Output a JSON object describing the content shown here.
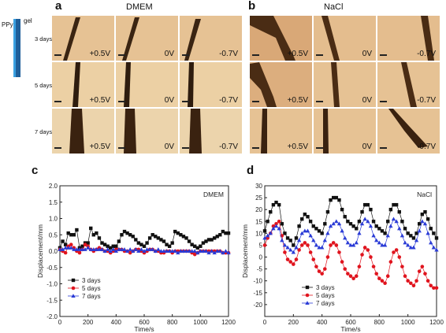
{
  "figure": {
    "legend_labels": {
      "ppy": "PPy",
      "gel": "gel"
    },
    "panel_a": {
      "letter": "a",
      "title": "DMEM"
    },
    "panel_b": {
      "letter": "b",
      "title": "NaCl"
    },
    "panel_c": {
      "letter": "c"
    },
    "panel_d": {
      "letter": "d"
    },
    "rows": [
      "3 days",
      "5 days",
      "7 days"
    ],
    "voltages": [
      "+0.5V",
      "0V",
      "-0.7V"
    ],
    "colors": {
      "series_3d": "#111111",
      "series_5d": "#e0141e",
      "series_7d": "#2a3bd6",
      "micro_bg": "#e4c08e",
      "electrode": "#3aa0e0"
    }
  },
  "chart_data": [
    {
      "type": "line",
      "panel": "c",
      "annotation": "DMEM",
      "xlabel": "Time/s",
      "ylabel": "Displacement/mm",
      "xlim": [
        0,
        1200
      ],
      "ylim": [
        -2.0,
        2.0
      ],
      "xticks": [
        0,
        200,
        400,
        600,
        800,
        1000,
        1200
      ],
      "yticks": [
        -2.0,
        -1.5,
        -1.0,
        -0.5,
        0.0,
        0.5,
        1.0,
        1.5,
        2.0
      ],
      "ytick_labels": [
        "-2.0",
        "-1.5",
        "-1.0",
        "-0.5",
        "0.0",
        "0.5",
        "1.0",
        "1.5",
        "2.0"
      ],
      "legend": "bottom-left",
      "series": [
        {
          "name": "3 days",
          "x": [
            0,
            20,
            40,
            60,
            80,
            100,
            120,
            140,
            160,
            180,
            200,
            220,
            240,
            260,
            280,
            300,
            320,
            340,
            360,
            380,
            400,
            420,
            440,
            460,
            480,
            500,
            520,
            540,
            560,
            580,
            600,
            620,
            640,
            660,
            680,
            700,
            720,
            740,
            760,
            780,
            800,
            820,
            840,
            860,
            880,
            900,
            920,
            940,
            960,
            980,
            1000,
            1020,
            1040,
            1060,
            1080,
            1100,
            1120,
            1140,
            1160,
            1180,
            1200
          ],
          "y": [
            0.1,
            0.3,
            0.2,
            0.55,
            0.5,
            0.5,
            0.65,
            0.1,
            0.15,
            0.25,
            0.25,
            0.7,
            0.5,
            0.55,
            0.4,
            0.25,
            0.2,
            0.15,
            0.1,
            0.15,
            0.15,
            0.3,
            0.5,
            0.6,
            0.55,
            0.5,
            0.45,
            0.35,
            0.25,
            0.2,
            0.15,
            0.25,
            0.4,
            0.5,
            0.45,
            0.4,
            0.35,
            0.3,
            0.2,
            0.15,
            0.25,
            0.6,
            0.55,
            0.5,
            0.45,
            0.4,
            0.3,
            0.2,
            0.15,
            0.1,
            0.15,
            0.25,
            0.3,
            0.35,
            0.35,
            0.4,
            0.45,
            0.5,
            0.6,
            0.55,
            0.55
          ]
        },
        {
          "name": "5 days",
          "x": [
            0,
            20,
            40,
            60,
            80,
            100,
            120,
            140,
            160,
            180,
            200,
            220,
            240,
            260,
            280,
            300,
            320,
            340,
            360,
            380,
            400,
            420,
            440,
            460,
            480,
            500,
            520,
            540,
            560,
            580,
            600,
            620,
            640,
            660,
            680,
            700,
            720,
            740,
            760,
            780,
            800,
            820,
            840,
            860,
            880,
            900,
            920,
            940,
            960,
            980,
            1000,
            1020,
            1040,
            1060,
            1080,
            1100,
            1120,
            1140,
            1160,
            1180,
            1200
          ],
          "y": [
            0.05,
            0.0,
            -0.05,
            0.15,
            0.2,
            0.1,
            0.0,
            -0.05,
            0.05,
            0.2,
            0.15,
            0.05,
            0.0,
            0.05,
            0.1,
            0.05,
            0.0,
            0.0,
            -0.05,
            0.0,
            0.05,
            0.05,
            0.05,
            0.0,
            0.0,
            -0.05,
            0.0,
            0.05,
            0.05,
            0.0,
            -0.05,
            0.0,
            0.05,
            0.05,
            0.0,
            0.0,
            -0.05,
            -0.05,
            0.0,
            0.0,
            -0.05,
            0.0,
            0.0,
            0.0,
            0.0,
            0.0,
            0.0,
            -0.05,
            -0.1,
            -0.05,
            0.0,
            0.0,
            0.0,
            0.0,
            0.0,
            0.0,
            0.0,
            0.0,
            -0.05,
            -0.05,
            -0.05
          ]
        },
        {
          "name": "7 days",
          "x": [
            0,
            20,
            40,
            60,
            80,
            100,
            120,
            140,
            160,
            180,
            200,
            220,
            240,
            260,
            280,
            300,
            320,
            340,
            360,
            380,
            400,
            420,
            440,
            460,
            480,
            500,
            520,
            540,
            560,
            580,
            600,
            620,
            640,
            660,
            680,
            700,
            720,
            740,
            760,
            780,
            800,
            820,
            840,
            860,
            880,
            900,
            920,
            940,
            960,
            980,
            1000,
            1020,
            1040,
            1060,
            1080,
            1100,
            1120,
            1140,
            1160,
            1180,
            1200
          ],
          "y": [
            0.05,
            0.05,
            0.1,
            0.1,
            0.1,
            0.05,
            0.05,
            0.05,
            0.05,
            0.05,
            0.1,
            0.05,
            0.05,
            0.05,
            0.05,
            0.05,
            0.0,
            0.05,
            0.0,
            0.05,
            0.0,
            0.05,
            0.05,
            0.05,
            0.0,
            0.05,
            0.0,
            0.05,
            0.0,
            0.05,
            0.0,
            0.05,
            0.05,
            0.05,
            0.0,
            0.05,
            0.0,
            0.0,
            0.0,
            0.0,
            0.0,
            0.0,
            -0.05,
            0.0,
            0.0,
            0.0,
            0.0,
            0.0,
            0.0,
            -0.05,
            0.0,
            0.0,
            0.0,
            -0.05,
            0.0,
            -0.05,
            0.0,
            0.0,
            -0.05,
            0.0,
            -0.05
          ]
        }
      ]
    },
    {
      "type": "line",
      "panel": "d",
      "annotation": "NaCl",
      "xlabel": "Time/s",
      "ylabel": "Displacement/mm",
      "xlim": [
        0,
        1200
      ],
      "ylim": [
        -25,
        30
      ],
      "xticks": [
        0,
        200,
        400,
        600,
        800,
        1000,
        1200
      ],
      "yticks": [
        -20,
        -15,
        -10,
        -5,
        0,
        5,
        10,
        15,
        20,
        25,
        30
      ],
      "ytick_labels": [
        "-20",
        "-15",
        "-10",
        "-5",
        "0",
        "5",
        "10",
        "15",
        "20",
        "25",
        "30"
      ],
      "legend": "bottom-center",
      "series": [
        {
          "name": "3 days",
          "x": [
            0,
            20,
            40,
            60,
            80,
            100,
            120,
            140,
            160,
            180,
            200,
            220,
            240,
            260,
            280,
            300,
            320,
            340,
            360,
            380,
            400,
            420,
            440,
            460,
            480,
            500,
            520,
            540,
            560,
            580,
            600,
            620,
            640,
            660,
            680,
            700,
            720,
            740,
            760,
            780,
            800,
            820,
            840,
            860,
            880,
            900,
            920,
            940,
            960,
            980,
            1000,
            1020,
            1040,
            1060,
            1080,
            1100,
            1120,
            1140,
            1160,
            1180,
            1200
          ],
          "y": [
            11,
            15,
            19,
            22,
            23,
            22,
            14,
            10,
            8,
            7,
            5,
            8,
            13,
            16,
            18,
            17,
            15,
            13,
            12,
            11,
            10,
            14,
            19,
            24,
            25,
            25,
            24,
            20,
            17,
            15,
            14,
            13,
            12,
            15,
            19,
            22,
            22,
            20,
            15,
            13,
            12,
            11,
            10,
            15,
            20,
            22,
            22,
            19,
            15,
            12,
            10,
            9,
            8,
            10,
            14,
            18,
            19,
            16,
            12,
            10,
            8
          ]
        },
        {
          "name": "5 days",
          "x": [
            0,
            20,
            40,
            60,
            80,
            100,
            120,
            140,
            160,
            180,
            200,
            220,
            240,
            260,
            280,
            300,
            320,
            340,
            360,
            380,
            400,
            420,
            440,
            460,
            480,
            500,
            520,
            540,
            560,
            580,
            600,
            620,
            640,
            660,
            680,
            700,
            720,
            740,
            760,
            780,
            800,
            820,
            840,
            860,
            880,
            900,
            920,
            940,
            960,
            980,
            1000,
            1020,
            1040,
            1060,
            1080,
            1100,
            1120,
            1140,
            1160,
            1180,
            1200
          ],
          "y": [
            5,
            8,
            10,
            13,
            14,
            15,
            9,
            2,
            -1,
            -2,
            -3,
            -1,
            3,
            5,
            6,
            5,
            2,
            -1,
            -4,
            -6,
            -7,
            -5,
            0,
            5,
            6,
            5,
            2,
            -2,
            -5,
            -7,
            -8,
            -9,
            -8,
            -4,
            1,
            4,
            3,
            0,
            -4,
            -7,
            -9,
            -10,
            -11,
            -8,
            -2,
            2,
            3,
            0,
            -4,
            -8,
            -10,
            -11,
            -12,
            -10,
            -6,
            -4,
            -7,
            -10,
            -12,
            -13,
            -13
          ]
        },
        {
          "name": "7 days",
          "x": [
            0,
            20,
            40,
            60,
            80,
            100,
            120,
            140,
            160,
            180,
            200,
            220,
            240,
            260,
            280,
            300,
            320,
            340,
            360,
            380,
            400,
            420,
            440,
            460,
            480,
            500,
            520,
            540,
            560,
            580,
            600,
            620,
            640,
            660,
            680,
            700,
            720,
            740,
            760,
            780,
            800,
            820,
            840,
            860,
            880,
            900,
            920,
            940,
            960,
            980,
            1000,
            1020,
            1040,
            1060,
            1080,
            1100,
            1120,
            1140,
            1160,
            1180,
            1200
          ],
          "y": [
            8,
            9,
            10,
            12,
            13,
            12,
            7,
            5,
            4,
            3,
            2,
            4,
            7,
            10,
            11,
            11,
            9,
            7,
            5,
            4,
            4,
            7,
            10,
            13,
            14,
            15,
            14,
            11,
            8,
            6,
            5,
            5,
            6,
            10,
            14,
            16,
            15,
            13,
            9,
            7,
            6,
            5,
            5,
            9,
            13,
            16,
            15,
            12,
            9,
            6,
            5,
            4,
            4,
            7,
            11,
            15,
            14,
            10,
            6,
            4,
            3
          ]
        }
      ]
    }
  ]
}
